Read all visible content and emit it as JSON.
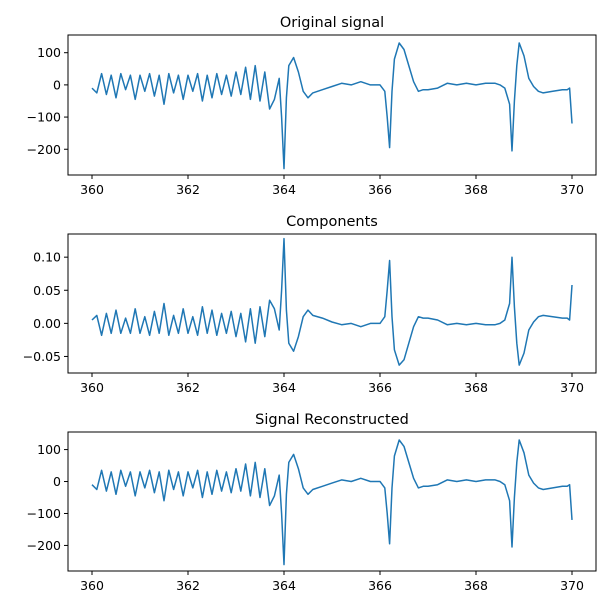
{
  "chart_data": [
    {
      "type": "line",
      "title": "Original signal",
      "xlabel": "",
      "ylabel": "",
      "xlim": [
        359.5,
        370.5
      ],
      "ylim": [
        -280,
        155
      ],
      "xticks": [
        360,
        362,
        364,
        366,
        368,
        370
      ],
      "xtick_labels": [
        "360",
        "362",
        "364",
        "366",
        "368",
        "370"
      ],
      "yticks": [
        -200,
        -100,
        0,
        100
      ],
      "ytick_labels": [
        "−200",
        "−100",
        "0",
        "100"
      ],
      "grid": false,
      "color": "#1f77b4",
      "series": [
        {
          "x": [
            360.0,
            360.1,
            360.2,
            360.3,
            360.4,
            360.5,
            360.6,
            360.7,
            360.8,
            360.9,
            361.0,
            361.1,
            361.2,
            361.3,
            361.4,
            361.5,
            361.6,
            361.7,
            361.8,
            361.9,
            362.0,
            362.1,
            362.2,
            362.3,
            362.4,
            362.5,
            362.6,
            362.7,
            362.8,
            362.9,
            363.0,
            363.1,
            363.2,
            363.3,
            363.4,
            363.5,
            363.6,
            363.7,
            363.8,
            363.9,
            363.95,
            364.0,
            364.05,
            364.1,
            364.2,
            364.3,
            364.4,
            364.5,
            364.6,
            364.8,
            365.0,
            365.2,
            365.4,
            365.6,
            365.8,
            366.0,
            366.1,
            366.15,
            366.2,
            366.25,
            366.3,
            366.4,
            366.5,
            366.6,
            366.7,
            366.8,
            366.9,
            367.0,
            367.2,
            367.4,
            367.6,
            367.8,
            368.0,
            368.2,
            368.4,
            368.5,
            368.6,
            368.7,
            368.75,
            368.8,
            368.85,
            368.9,
            369.0,
            369.1,
            369.2,
            369.3,
            369.4,
            369.6,
            369.8,
            369.9,
            369.95,
            370.0
          ],
          "y": [
            -10,
            -25,
            35,
            -30,
            30,
            -40,
            35,
            -15,
            30,
            -45,
            30,
            -20,
            35,
            -35,
            30,
            -60,
            35,
            -25,
            30,
            -45,
            30,
            -20,
            35,
            -50,
            30,
            -40,
            35,
            -30,
            30,
            -35,
            40,
            -30,
            55,
            -45,
            60,
            -50,
            40,
            -75,
            -45,
            20,
            -100,
            -260,
            -40,
            60,
            85,
            40,
            -20,
            -40,
            -25,
            -15,
            -5,
            5,
            0,
            10,
            0,
            0,
            -20,
            -100,
            -195,
            -20,
            80,
            130,
            110,
            60,
            10,
            -20,
            -15,
            -15,
            -10,
            5,
            0,
            5,
            0,
            5,
            5,
            0,
            -10,
            -60,
            -205,
            -50,
            60,
            130,
            90,
            20,
            -5,
            -20,
            -25,
            -20,
            -15,
            -15,
            -10,
            -120
          ]
        }
      ]
    },
    {
      "type": "line",
      "title": "Components",
      "xlabel": "",
      "ylabel": "",
      "xlim": [
        359.5,
        370.5
      ],
      "ylim": [
        -0.075,
        0.135
      ],
      "xticks": [
        360,
        362,
        364,
        366,
        368,
        370
      ],
      "xtick_labels": [
        "360",
        "362",
        "364",
        "366",
        "368",
        "370"
      ],
      "yticks": [
        -0.05,
        0.0,
        0.05,
        0.1
      ],
      "ytick_labels": [
        "−0.05",
        "0.00",
        "0.05",
        "0.10"
      ],
      "grid": false,
      "color": "#1f77b4",
      "series": [
        {
          "x": [
            360.0,
            360.1,
            360.2,
            360.3,
            360.4,
            360.5,
            360.6,
            360.7,
            360.8,
            360.9,
            361.0,
            361.1,
            361.2,
            361.3,
            361.4,
            361.5,
            361.6,
            361.7,
            361.8,
            361.9,
            362.0,
            362.1,
            362.2,
            362.3,
            362.4,
            362.5,
            362.6,
            362.7,
            362.8,
            362.9,
            363.0,
            363.1,
            363.2,
            363.3,
            363.4,
            363.5,
            363.6,
            363.7,
            363.8,
            363.9,
            363.95,
            364.0,
            364.05,
            364.1,
            364.2,
            364.3,
            364.4,
            364.5,
            364.6,
            364.8,
            365.0,
            365.2,
            365.4,
            365.6,
            365.8,
            366.0,
            366.1,
            366.15,
            366.2,
            366.25,
            366.3,
            366.4,
            366.5,
            366.6,
            366.7,
            366.8,
            366.9,
            367.0,
            367.2,
            367.4,
            367.6,
            367.8,
            368.0,
            368.2,
            368.4,
            368.5,
            368.6,
            368.7,
            368.75,
            368.8,
            368.85,
            368.9,
            369.0,
            369.1,
            369.2,
            369.3,
            369.4,
            369.6,
            369.8,
            369.9,
            369.95,
            370.0
          ],
          "y": [
            0.005,
            0.012,
            -0.018,
            0.015,
            -0.015,
            0.02,
            -0.015,
            0.008,
            -0.015,
            0.022,
            -0.015,
            0.01,
            -0.018,
            0.018,
            -0.015,
            0.03,
            -0.018,
            0.012,
            -0.015,
            0.022,
            -0.015,
            0.01,
            -0.018,
            0.025,
            -0.015,
            0.02,
            -0.018,
            0.015,
            -0.015,
            0.018,
            -0.02,
            0.015,
            -0.028,
            0.022,
            -0.03,
            0.025,
            -0.02,
            0.035,
            0.022,
            -0.01,
            0.05,
            0.128,
            0.02,
            -0.03,
            -0.042,
            -0.02,
            0.01,
            0.02,
            0.012,
            0.008,
            0.002,
            -0.002,
            0.0,
            -0.005,
            0.0,
            0.0,
            0.01,
            0.05,
            0.095,
            0.01,
            -0.04,
            -0.063,
            -0.055,
            -0.03,
            -0.005,
            0.01,
            0.008,
            0.008,
            0.005,
            -0.002,
            0.0,
            -0.002,
            0.0,
            -0.002,
            -0.002,
            0.0,
            0.005,
            0.03,
            0.1,
            0.025,
            -0.03,
            -0.063,
            -0.045,
            -0.01,
            0.002,
            0.01,
            0.012,
            0.01,
            0.008,
            0.008,
            0.005,
            0.058
          ]
        }
      ]
    },
    {
      "type": "line",
      "title": "Signal Reconstructed",
      "xlabel": "",
      "ylabel": "",
      "xlim": [
        359.5,
        370.5
      ],
      "ylim": [
        -280,
        155
      ],
      "xticks": [
        360,
        362,
        364,
        366,
        368,
        370
      ],
      "xtick_labels": [
        "360",
        "362",
        "364",
        "366",
        "368",
        "370"
      ],
      "yticks": [
        -200,
        -100,
        0,
        100
      ],
      "ytick_labels": [
        "−200",
        "−100",
        "0",
        "100"
      ],
      "grid": false,
      "color": "#1f77b4",
      "series": [
        {
          "x": [
            360.0,
            360.1,
            360.2,
            360.3,
            360.4,
            360.5,
            360.6,
            360.7,
            360.8,
            360.9,
            361.0,
            361.1,
            361.2,
            361.3,
            361.4,
            361.5,
            361.6,
            361.7,
            361.8,
            361.9,
            362.0,
            362.1,
            362.2,
            362.3,
            362.4,
            362.5,
            362.6,
            362.7,
            362.8,
            362.9,
            363.0,
            363.1,
            363.2,
            363.3,
            363.4,
            363.5,
            363.6,
            363.7,
            363.8,
            363.9,
            363.95,
            364.0,
            364.05,
            364.1,
            364.2,
            364.3,
            364.4,
            364.5,
            364.6,
            364.8,
            365.0,
            365.2,
            365.4,
            365.6,
            365.8,
            366.0,
            366.1,
            366.15,
            366.2,
            366.25,
            366.3,
            366.4,
            366.5,
            366.6,
            366.7,
            366.8,
            366.9,
            367.0,
            367.2,
            367.4,
            367.6,
            367.8,
            368.0,
            368.2,
            368.4,
            368.5,
            368.6,
            368.7,
            368.75,
            368.8,
            368.85,
            368.9,
            369.0,
            369.1,
            369.2,
            369.3,
            369.4,
            369.6,
            369.8,
            369.9,
            369.95,
            370.0
          ],
          "y": [
            -10,
            -25,
            35,
            -30,
            30,
            -40,
            35,
            -15,
            30,
            -45,
            30,
            -20,
            35,
            -35,
            30,
            -60,
            35,
            -25,
            30,
            -45,
            30,
            -20,
            35,
            -50,
            30,
            -40,
            35,
            -30,
            30,
            -35,
            40,
            -30,
            55,
            -45,
            60,
            -50,
            40,
            -75,
            -45,
            20,
            -100,
            -260,
            -40,
            60,
            85,
            40,
            -20,
            -40,
            -25,
            -15,
            -5,
            5,
            0,
            10,
            0,
            0,
            -20,
            -100,
            -195,
            -20,
            80,
            130,
            110,
            60,
            10,
            -20,
            -15,
            -15,
            -10,
            5,
            0,
            5,
            0,
            5,
            5,
            0,
            -10,
            -60,
            -205,
            -50,
            60,
            130,
            90,
            20,
            -5,
            -20,
            -25,
            -20,
            -15,
            -15,
            -10,
            -120
          ]
        }
      ]
    }
  ]
}
